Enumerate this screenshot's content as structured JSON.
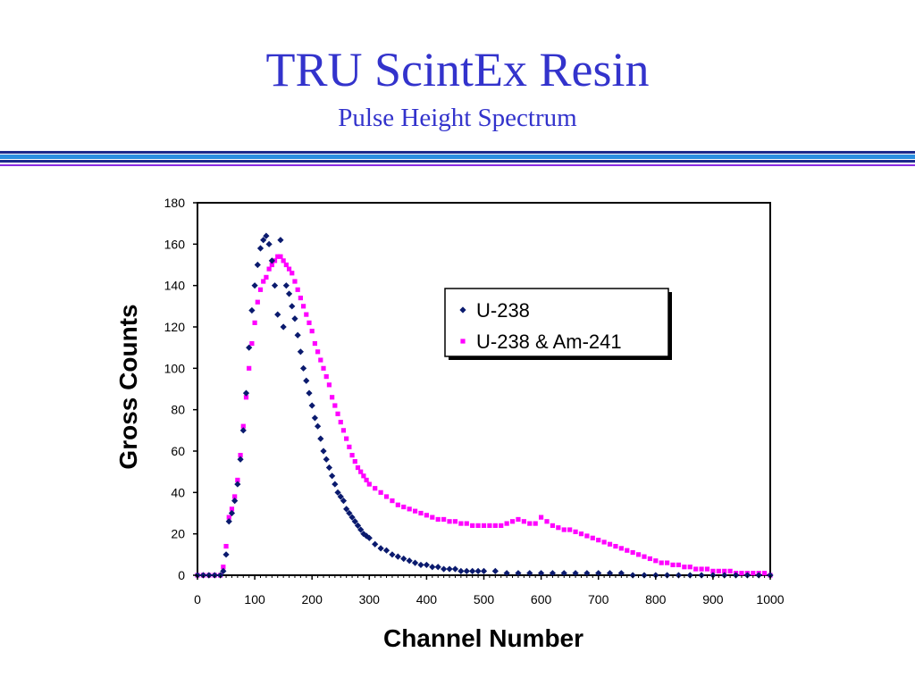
{
  "slide": {
    "title": "TRU ScintEx Resin",
    "subtitle": "Pulse Height Spectrum"
  },
  "colors": {
    "title": "#3333cc",
    "u238": "#0a1a6e",
    "u238_am241": "#ff00ff"
  },
  "chart_data": {
    "type": "scatter",
    "xlabel": "Channel Number",
    "ylabel": "Gross Counts",
    "xlim": [
      0,
      1000
    ],
    "ylim": [
      0,
      180
    ],
    "xticks": [
      0,
      100,
      200,
      300,
      400,
      500,
      600,
      700,
      800,
      900,
      1000
    ],
    "yticks": [
      0,
      20,
      40,
      60,
      80,
      100,
      120,
      140,
      160,
      180
    ],
    "grid": false,
    "legend": "upper-right-inset",
    "series": [
      {
        "name": "U-238",
        "marker": "diamond",
        "color": "#0a1a6e",
        "x": [
          0,
          10,
          20,
          30,
          40,
          45,
          50,
          55,
          60,
          65,
          70,
          75,
          80,
          85,
          90,
          95,
          100,
          105,
          110,
          115,
          120,
          125,
          130,
          135,
          140,
          145,
          150,
          155,
          160,
          165,
          170,
          175,
          180,
          185,
          190,
          195,
          200,
          205,
          210,
          215,
          220,
          225,
          230,
          235,
          240,
          245,
          250,
          255,
          260,
          265,
          270,
          275,
          280,
          285,
          290,
          295,
          300,
          310,
          320,
          330,
          340,
          350,
          360,
          370,
          380,
          390,
          400,
          410,
          420,
          430,
          440,
          450,
          460,
          470,
          480,
          490,
          500,
          520,
          540,
          560,
          580,
          600,
          620,
          640,
          660,
          680,
          700,
          720,
          740,
          760,
          780,
          800,
          820,
          840,
          860,
          880,
          900,
          920,
          940,
          960,
          980,
          1000
        ],
        "values": [
          0,
          0,
          0,
          0,
          0,
          2,
          10,
          26,
          30,
          36,
          44,
          56,
          70,
          88,
          110,
          128,
          140,
          150,
          158,
          162,
          164,
          160,
          152,
          140,
          126,
          162,
          120,
          140,
          136,
          130,
          124,
          116,
          108,
          100,
          94,
          88,
          82,
          76,
          72,
          66,
          60,
          56,
          52,
          48,
          44,
          40,
          38,
          36,
          32,
          30,
          28,
          26,
          24,
          22,
          20,
          19,
          18,
          15,
          13,
          12,
          10,
          9,
          8,
          7,
          6,
          5,
          5,
          4,
          4,
          3,
          3,
          3,
          2,
          2,
          2,
          2,
          2,
          2,
          1,
          1,
          1,
          1,
          1,
          1,
          1,
          1,
          1,
          1,
          1,
          0,
          0,
          0,
          0,
          0,
          0,
          0,
          0,
          0,
          0,
          0,
          0,
          0
        ]
      },
      {
        "name": "U-238 & Am-241",
        "marker": "square",
        "color": "#ff00ff",
        "x": [
          0,
          10,
          20,
          30,
          40,
          45,
          50,
          55,
          60,
          65,
          70,
          75,
          80,
          85,
          90,
          95,
          100,
          105,
          110,
          115,
          120,
          125,
          130,
          135,
          140,
          145,
          150,
          155,
          160,
          165,
          170,
          175,
          180,
          185,
          190,
          195,
          200,
          205,
          210,
          215,
          220,
          225,
          230,
          235,
          240,
          245,
          250,
          255,
          260,
          265,
          270,
          275,
          280,
          285,
          290,
          295,
          300,
          310,
          320,
          330,
          340,
          350,
          360,
          370,
          380,
          390,
          400,
          410,
          420,
          430,
          440,
          450,
          460,
          470,
          480,
          490,
          500,
          510,
          520,
          530,
          540,
          550,
          560,
          570,
          580,
          590,
          600,
          610,
          620,
          630,
          640,
          650,
          660,
          670,
          680,
          690,
          700,
          710,
          720,
          730,
          740,
          750,
          760,
          770,
          780,
          790,
          800,
          810,
          820,
          830,
          840,
          850,
          860,
          870,
          880,
          890,
          900,
          910,
          920,
          930,
          940,
          950,
          960,
          970,
          980,
          990,
          1000
        ],
        "values": [
          0,
          0,
          0,
          0,
          0,
          4,
          14,
          28,
          32,
          38,
          46,
          58,
          72,
          86,
          100,
          112,
          122,
          132,
          138,
          142,
          144,
          148,
          150,
          152,
          154,
          154,
          152,
          150,
          148,
          146,
          142,
          138,
          134,
          130,
          126,
          122,
          118,
          112,
          108,
          104,
          100,
          96,
          92,
          86,
          82,
          78,
          74,
          70,
          66,
          62,
          58,
          55,
          52,
          50,
          48,
          46,
          44,
          42,
          40,
          38,
          36,
          34,
          33,
          32,
          31,
          30,
          29,
          28,
          27,
          27,
          26,
          26,
          25,
          25,
          24,
          24,
          24,
          24,
          24,
          24,
          25,
          26,
          27,
          26,
          25,
          25,
          28,
          26,
          24,
          23,
          22,
          22,
          21,
          20,
          19,
          18,
          17,
          16,
          15,
          14,
          13,
          12,
          11,
          10,
          9,
          8,
          7,
          6,
          6,
          5,
          5,
          4,
          4,
          3,
          3,
          3,
          2,
          2,
          2,
          2,
          1,
          1,
          1,
          1,
          1,
          1,
          0
        ]
      }
    ]
  }
}
